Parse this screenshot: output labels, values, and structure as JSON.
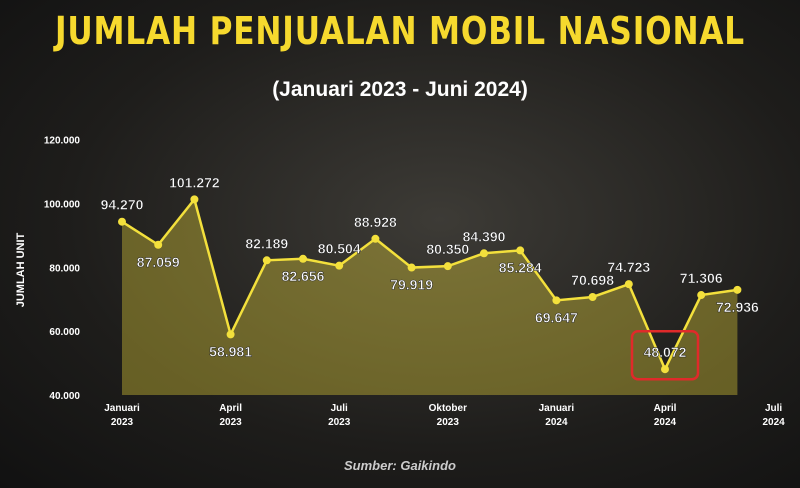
{
  "chart_data": {
    "type": "area",
    "title": "JUMLAH PENJUALAN MOBIL NASIONAL",
    "subtitle": "(Januari 2023 - Juni 2024)",
    "y_label": "JUMLAH UNIT",
    "source": "Sumber: Gaikindo",
    "color": "#f3e03c",
    "categories": [
      "Januari\n2023",
      null,
      null,
      "April\n2023",
      null,
      null,
      "Juli\n2023",
      null,
      null,
      "Oktober\n2023",
      null,
      null,
      "Januari\n2024",
      null,
      null,
      "April\n2024",
      null,
      null,
      "Juli\n2024"
    ],
    "values": [
      94270,
      87059,
      101272,
      58981,
      82189,
      82656,
      80504,
      88928,
      79919,
      80350,
      84390,
      85284,
      69647,
      70698,
      74723,
      48072,
      71306,
      72936,
      null
    ],
    "value_labels": [
      "94.270",
      "87.059",
      "101.272",
      "58.981",
      "82.189",
      "82.656",
      "80.504",
      "88.928",
      "79.919",
      "80.350",
      "84.390",
      "85.284",
      "69.647",
      "70.698",
      "74.723",
      "48.072",
      "71.306",
      "72.936",
      null
    ],
    "ylim": [
      40000,
      123000
    ],
    "yticks": [
      {
        "value": 40000,
        "label": "40.000"
      },
      {
        "value": 60000,
        "label": "60.000"
      },
      {
        "value": 80000,
        "label": "80.000"
      },
      {
        "value": 100000,
        "label": "100.000"
      },
      {
        "value": 120000,
        "label": "120.000"
      }
    ]
  }
}
